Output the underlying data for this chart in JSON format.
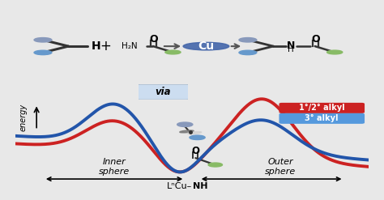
{
  "bg_color": "#e8e8e8",
  "panel_bg": "#f7f7f7",
  "blue_line": "#2255aa",
  "red_line": "#cc2222",
  "legend_red_bg": "#cc2222",
  "legend_blue_bg": "#5599dd",
  "via_box_color": "#ccddf0",
  "cu_color": "#4466aa",
  "gray_atom": "#8899bb",
  "blue_atom": "#6699cc",
  "green_atom": "#88bb66",
  "bond_color": "#333333",
  "inner_sphere": "Inner\nsphere",
  "outer_sphere": "Outer\nsphere",
  "lncu_label": "LⁿCu–",
  "nh_label": "NH",
  "energy_label": "energy",
  "legend1_label": "1°/2° alkyl",
  "legend2_label": "3° alkyl",
  "via_label": "via"
}
